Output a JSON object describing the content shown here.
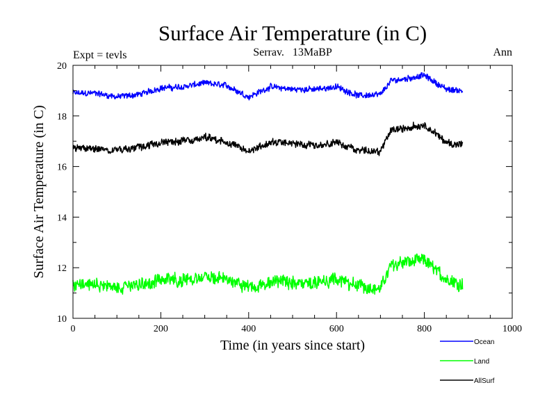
{
  "chart_data": {
    "type": "line",
    "title": "Surface Air Temperature (in C)",
    "subtitle_left": "Expt = tevls",
    "subtitle_center": "Serrav.   13MaBP",
    "subtitle_right": "Ann",
    "xlabel": "Time (in years since start)",
    "ylabel": "Surface Air Temperature (in C)",
    "xlim": [
      0,
      1000
    ],
    "ylim": [
      10,
      20
    ],
    "xticks": [
      0,
      200,
      400,
      600,
      800,
      1000
    ],
    "xtick_labels": [
      "0",
      "200",
      "400",
      "600",
      "800",
      "1000"
    ],
    "yticks": [
      10,
      12,
      14,
      16,
      18,
      20
    ],
    "ytick_labels": [
      "10",
      "12",
      "14",
      "16",
      "18",
      "20"
    ],
    "grid": false,
    "legend_position": "bottom-right, below plot",
    "series": [
      {
        "name": "Ocean",
        "color": "#0000ff",
        "x": [
          0,
          50,
          100,
          150,
          200,
          250,
          300,
          350,
          400,
          450,
          500,
          550,
          600,
          650,
          700,
          725,
          750,
          800,
          850,
          887
        ],
        "values": [
          18.9,
          18.9,
          18.75,
          18.85,
          19.1,
          19.15,
          19.3,
          19.2,
          18.75,
          19.15,
          19.05,
          19.05,
          19.15,
          18.8,
          18.85,
          19.4,
          19.45,
          19.6,
          19.05,
          19.0
        ]
      },
      {
        "name": "Land",
        "color": "#00ff00",
        "x": [
          0,
          50,
          100,
          150,
          200,
          250,
          300,
          350,
          400,
          450,
          500,
          550,
          600,
          650,
          700,
          725,
          750,
          800,
          850,
          887
        ],
        "values": [
          11.3,
          11.3,
          11.2,
          11.3,
          11.5,
          11.55,
          11.6,
          11.55,
          11.2,
          11.45,
          11.4,
          11.4,
          11.5,
          11.3,
          11.15,
          12.15,
          12.2,
          12.3,
          11.55,
          11.35
        ]
      },
      {
        "name": "AllSurf",
        "color": "#000000",
        "x": [
          0,
          50,
          100,
          150,
          200,
          250,
          300,
          350,
          400,
          450,
          500,
          550,
          600,
          650,
          700,
          725,
          750,
          800,
          850,
          887
        ],
        "values": [
          16.75,
          16.7,
          16.65,
          16.75,
          16.95,
          17.0,
          17.15,
          16.95,
          16.6,
          16.95,
          16.9,
          16.85,
          16.95,
          16.65,
          16.6,
          17.45,
          17.5,
          17.65,
          16.95,
          16.85
        ]
      }
    ]
  }
}
